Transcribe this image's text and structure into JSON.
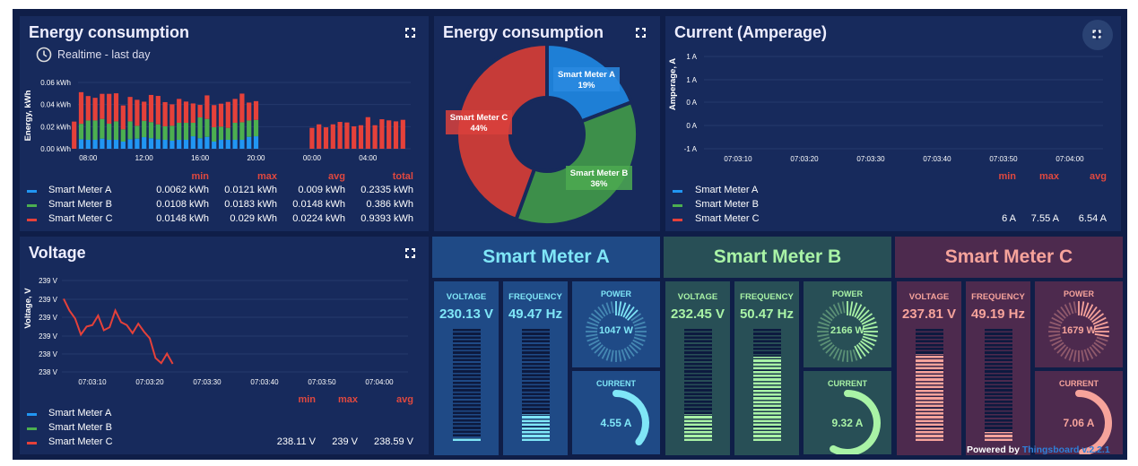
{
  "colors": {
    "meter_a": "#2196f3",
    "meter_b": "#4caf50",
    "meter_c": "#e5413a",
    "stat_header": "#e0483f"
  },
  "energy_bar": {
    "title": "Energy consumption",
    "timewindow": "Realtime - last day",
    "icons": {
      "time": "clock-icon",
      "fullscreen": "fullscreen-icon"
    },
    "legend": {
      "headers": [
        "min",
        "max",
        "avg",
        "total"
      ],
      "rows": [
        {
          "name": "Smart Meter A",
          "values": [
            "0.0062 kWh",
            "0.0121 kWh",
            "0.009 kWh",
            "0.2335 kWh"
          ]
        },
        {
          "name": "Smart Meter B",
          "values": [
            "0.0108 kWh",
            "0.0183 kWh",
            "0.0148 kWh",
            "0.386 kWh"
          ]
        },
        {
          "name": "Smart Meter C",
          "values": [
            "0.0148 kWh",
            "0.029 kWh",
            "0.0224 kWh",
            "0.9393 kWh"
          ]
        }
      ]
    }
  },
  "energy_pie": {
    "title": "Energy consumption"
  },
  "current_chart": {
    "title": "Current (Amperage)",
    "legend": {
      "headers": [
        "min",
        "max",
        "avg"
      ],
      "rows": [
        {
          "name": "Smart Meter A",
          "values": [
            "",
            "",
            ""
          ]
        },
        {
          "name": "Smart Meter B",
          "values": [
            "",
            "",
            ""
          ]
        },
        {
          "name": "Smart Meter C",
          "values": [
            "6 A",
            "7.55 A",
            "6.54 A"
          ]
        }
      ]
    }
  },
  "voltage_chart": {
    "title": "Voltage",
    "legend": {
      "headers": [
        "min",
        "max",
        "avg"
      ],
      "rows": [
        {
          "name": "Smart Meter A",
          "values": [
            "",
            "",
            ""
          ]
        },
        {
          "name": "Smart Meter B",
          "values": [
            "",
            "",
            ""
          ]
        },
        {
          "name": "Smart Meter C",
          "values": [
            "238.11 V",
            "239 V",
            "238.59 V"
          ]
        }
      ]
    }
  },
  "chart_data": [
    {
      "type": "bar",
      "stacked": true,
      "ylabel": "Energy, kWh",
      "yticks": [
        "0.00 kWh",
        "0.02 kWh",
        "0.04 kWh",
        "0.06 kWh"
      ],
      "ylim": [
        0,
        0.06
      ],
      "xticks": [
        "08:00",
        "12:00",
        "16:00",
        "20:00",
        "00:00",
        "04:00"
      ],
      "grid": true,
      "x": [
        "07:30",
        "08:00",
        "08:30",
        "09:00",
        "09:30",
        "10:00",
        "10:30",
        "11:00",
        "11:30",
        "12:00",
        "12:30",
        "13:00",
        "13:30",
        "14:00",
        "14:30",
        "15:00",
        "15:30",
        "16:00",
        "16:30",
        "17:00",
        "17:30",
        "18:00",
        "18:30",
        "19:00",
        "19:30",
        "20:00"
      ],
      "series": [
        {
          "name": "Smart Meter A",
          "values": [
            0.0086,
            0.0081,
            0.0081,
            0.0092,
            0.0081,
            0.0081,
            0.0065,
            0.0086,
            0.0092,
            0.0105,
            0.0095,
            0.0086,
            0.0081,
            0.0073,
            0.0081,
            0.0081,
            0.0113,
            0.0095,
            0.0108,
            0.0065,
            0.0081,
            0.0081,
            0.0081,
            0.0081,
            0.0108,
            0.0113
          ]
        },
        {
          "name": "Smart Meter B",
          "values": [
            0.014,
            0.0175,
            0.0175,
            0.0178,
            0.0146,
            0.0167,
            0.0111,
            0.0162,
            0.0116,
            0.0148,
            0.0146,
            0.0135,
            0.0122,
            0.0135,
            0.0154,
            0.0154,
            0.0122,
            0.0189,
            0.0162,
            0.013,
            0.0119,
            0.0108,
            0.0154,
            0.0159,
            0.0148,
            0.0148
          ]
        },
        {
          "name": "Smart Meter C",
          "values": [
            0.0286,
            0.0221,
            0.0205,
            0.0227,
            0.027,
            0.0254,
            0.0216,
            0.0221,
            0.0235,
            0.0173,
            0.0246,
            0.0257,
            0.0219,
            0.0194,
            0.0216,
            0.0192,
            0.0175,
            0.0113,
            0.0213,
            0.02,
            0.0208,
            0.0235,
            0.0216,
            0.0259,
            0.0162,
            0.017
          ]
        }
      ],
      "x2": [
        "00:00",
        "00:30",
        "01:00",
        "01:30",
        "02:00",
        "02:30",
        "03:00",
        "03:30",
        "04:00",
        "04:30",
        "05:00",
        "05:30",
        "06:00",
        "06:30",
        "07:00"
      ],
      "series2": [
        {
          "name": "Smart Meter C",
          "values": [
            0.0189,
            0.0221,
            0.0194,
            0.0221,
            0.0243,
            0.0238,
            0.0203,
            0.0213,
            0.0286,
            0.0213,
            0.0267,
            0.0257,
            0.0248,
            0.0262,
            0.0246
          ]
        }
      ]
    },
    {
      "type": "pie",
      "donut": true,
      "labels": [
        "Smart Meter A",
        "Smart Meter B",
        "Smart Meter C"
      ],
      "values": [
        19,
        36,
        44
      ],
      "value_labels": [
        "19%",
        "36%",
        "44%"
      ]
    },
    {
      "type": "line",
      "ylabel": "Amperage, A",
      "yticks": [
        "1 A",
        "1 A",
        "0 A",
        "0 A",
        "-1 A"
      ],
      "xticks": [
        "07:03:10",
        "07:03:20",
        "07:03:30",
        "07:03:40",
        "07:03:50",
        "07:04:00"
      ],
      "grid": true,
      "series": []
    },
    {
      "type": "line",
      "ylabel": "Voltage, V",
      "yticks": [
        "239 V",
        "239 V",
        "239 V",
        "239 V",
        "238 V",
        "238 V"
      ],
      "ylim": [
        238,
        239.25
      ],
      "xticks": [
        "07:03:10",
        "07:03:20",
        "07:03:30",
        "07:03:40",
        "07:03:50",
        "07:04:00"
      ],
      "grid": true,
      "series": [
        {
          "name": "Smart Meter C",
          "x": [
            "07:03:05",
            "07:03:06",
            "07:03:07",
            "07:03:08",
            "07:03:09",
            "07:03:10",
            "07:03:11",
            "07:03:12",
            "07:03:13",
            "07:03:14",
            "07:03:15",
            "07:03:16",
            "07:03:17",
            "07:03:18",
            "07:03:19",
            "07:03:20",
            "07:03:21",
            "07:03:22",
            "07:03:23",
            "07:03:24"
          ],
          "values": [
            239.0,
            238.84,
            238.73,
            238.51,
            238.62,
            238.64,
            238.77,
            238.57,
            238.61,
            238.84,
            238.68,
            238.64,
            238.53,
            238.66,
            238.55,
            238.46,
            238.19,
            238.12,
            238.25,
            238.11
          ]
        }
      ]
    }
  ],
  "meters": [
    {
      "title": "Smart Meter A",
      "bg": "#1f4a86",
      "fg": "#7fe6f7",
      "voltage_label": "VOLTAGE",
      "voltage": "230.13 V",
      "voltage_level": 0.03,
      "frequency_label": "FREQUENCY",
      "frequency": "49.47 Hz",
      "frequency_level": 0.24,
      "power_label": "POWER",
      "power": "1047 W",
      "power_level": 0.14,
      "current_label": "CURRENT",
      "current": "4.55 A",
      "current_level": 0.36
    },
    {
      "title": "Smart Meter B",
      "bg": "#284f56",
      "fg": "#a9f3a6",
      "voltage_label": "VOLTAGE",
      "voltage": "232.45 V",
      "voltage_level": 0.24,
      "frequency_label": "FREQUENCY",
      "frequency": "50.47 Hz",
      "frequency_level": 0.75,
      "power_label": "POWER",
      "power": "2166 W",
      "power_level": 0.45,
      "current_label": "CURRENT",
      "current": "9.32 A",
      "current_level": 0.58
    },
    {
      "title": "Smart Meter C",
      "bg": "#4d2a4e",
      "fg": "#f6a39b",
      "voltage_label": "VOLTAGE",
      "voltage": "237.81 V",
      "voltage_level": 0.78,
      "frequency_label": "FREQUENCY",
      "frequency": "49.19 Hz",
      "frequency_level": 0.08,
      "power_label": "POWER",
      "power": "1679 W",
      "power_level": 0.3,
      "current_label": "CURRENT",
      "current": "7.06 A",
      "current_level": 0.48
    }
  ],
  "footer": {
    "powered_by": "Powered by",
    "brand": "Thingsboard v.2.2.1"
  }
}
